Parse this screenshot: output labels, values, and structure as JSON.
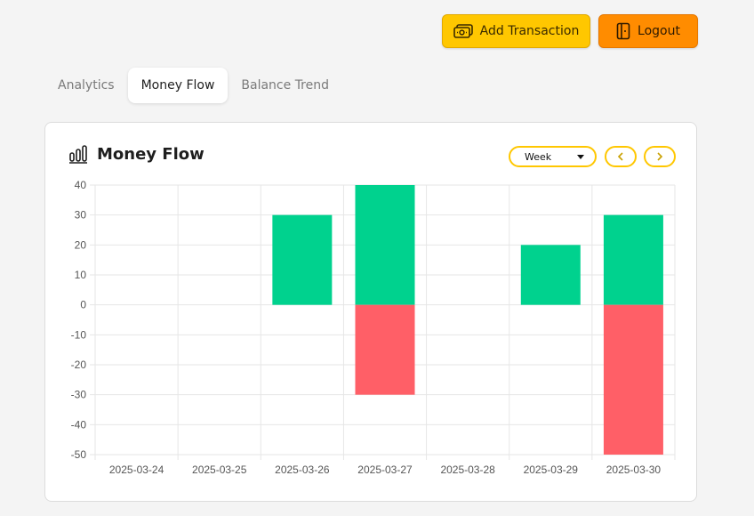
{
  "header": {
    "add_label": "Add Transaction",
    "logout_label": "Logout"
  },
  "tabs": [
    {
      "label": "Analytics",
      "active": false
    },
    {
      "label": "Money Flow",
      "active": true
    },
    {
      "label": "Balance Trend",
      "active": false
    }
  ],
  "card": {
    "title": "Money Flow",
    "range": "Week",
    "prev_icon": "chevron-left-icon",
    "next_icon": "chevron-right-icon"
  },
  "colors": {
    "accent": "#ffc700",
    "logout": "#ff8c00",
    "income": "#00d28e",
    "expense": "#ff5f67"
  },
  "chart_data": {
    "type": "bar",
    "stacked": true,
    "categories": [
      "2025-03-24",
      "2025-03-25",
      "2025-03-26",
      "2025-03-27",
      "2025-03-28",
      "2025-03-29",
      "2025-03-30"
    ],
    "series": [
      {
        "values": [
          0,
          0,
          30,
          40,
          0,
          20,
          30
        ],
        "color": "#00d28e"
      },
      {
        "values": [
          0,
          0,
          0,
          -30,
          0,
          0,
          -50
        ],
        "color": "#ff5f67"
      }
    ],
    "ylim": [
      -50,
      40
    ],
    "yticks": [
      40,
      30,
      20,
      10,
      0,
      -10,
      -20,
      -30,
      -40,
      -50
    ],
    "grid": true,
    "title": "",
    "xlabel": "",
    "ylabel": ""
  }
}
